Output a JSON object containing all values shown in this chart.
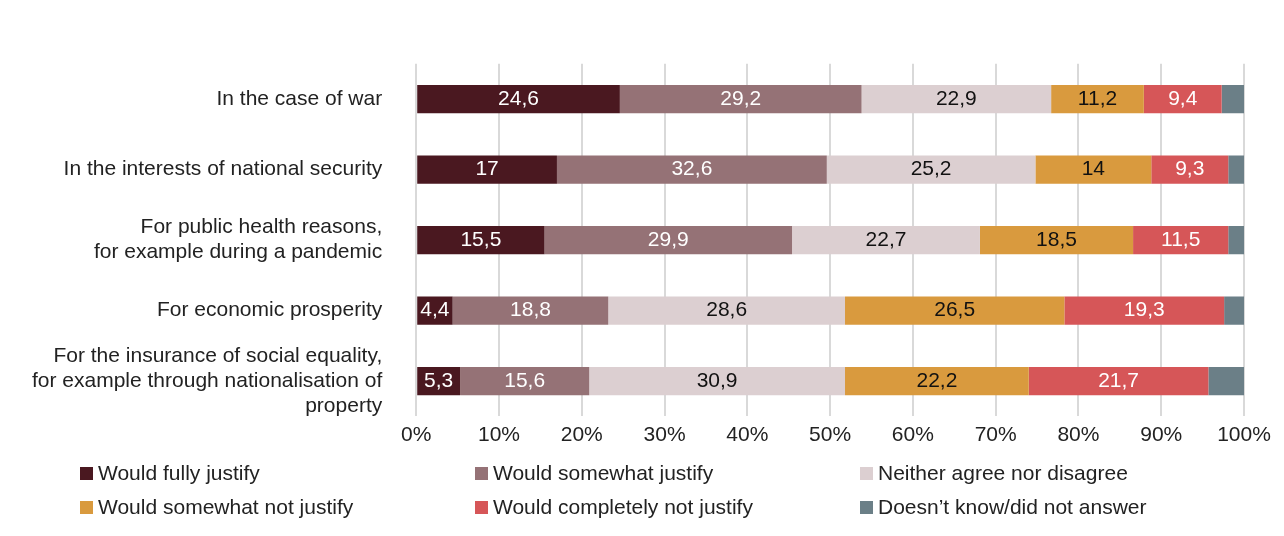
{
  "chart_data": {
    "type": "bar",
    "orientation": "horizontal",
    "stacked": true,
    "categories": [
      "In the case of war",
      "In the interests of national security",
      "For public health reasons, for example during a pandemic",
      "For economic prosperity",
      "For the insurance of social equality, for example through nationalisation of property"
    ],
    "series": [
      {
        "name": "Would fully justify",
        "color": "#4a1820",
        "values": [
          24.6,
          17,
          15.5,
          4.4,
          5.3
        ],
        "value_labels": [
          "24,6",
          "17",
          "15,5",
          "4,4",
          "5,3"
        ]
      },
      {
        "name": "Would somewhat justify",
        "color": "#957276",
        "values": [
          29.2,
          32.6,
          29.9,
          18.8,
          15.6
        ],
        "value_labels": [
          "29,2",
          "32,6",
          "29,9",
          "18,8",
          "15,6"
        ]
      },
      {
        "name": "Neither agree nor disagree",
        "color": "#dccfd1",
        "values": [
          22.9,
          25.2,
          22.7,
          28.6,
          30.9
        ],
        "value_labels": [
          "22,9",
          "25,2",
          "22,7",
          "28,6",
          "30,9"
        ]
      },
      {
        "name": "Would somewhat not justify",
        "color": "#d99a3e",
        "values": [
          11.2,
          14,
          18.5,
          26.5,
          22.2
        ],
        "value_labels": [
          "11,2",
          "14",
          "18,5",
          "26,5",
          "22,2"
        ]
      },
      {
        "name": "Would completely not justify",
        "color": "#d65658",
        "values": [
          9.4,
          9.3,
          11.5,
          19.3,
          21.7
        ],
        "value_labels": [
          "9,4",
          "9,3",
          "11,5",
          "19,3",
          "21,7"
        ]
      },
      {
        "name": "Doesn’t know/did not answer",
        "color": "#6b7f87",
        "values": [
          2.7,
          1.9,
          1.9,
          2.4,
          4.3
        ],
        "value_labels": [
          null,
          null,
          null,
          null,
          null
        ]
      }
    ],
    "xlim": [
      0,
      100
    ],
    "xticks": [
      {
        "value": 0,
        "label": "0%"
      },
      {
        "value": 10,
        "label": "10%"
      },
      {
        "value": 20,
        "label": "20%"
      },
      {
        "value": 30,
        "label": "30%"
      },
      {
        "value": 40,
        "label": "40%"
      },
      {
        "value": 50,
        "label": "50%"
      },
      {
        "value": 60,
        "label": "60%"
      },
      {
        "value": 70,
        "label": "70%"
      },
      {
        "value": 80,
        "label": "80%"
      },
      {
        "value": 90,
        "label": "90%"
      },
      {
        "value": 100,
        "label": "100%"
      }
    ],
    "grid": "x",
    "legend": "bottom"
  }
}
